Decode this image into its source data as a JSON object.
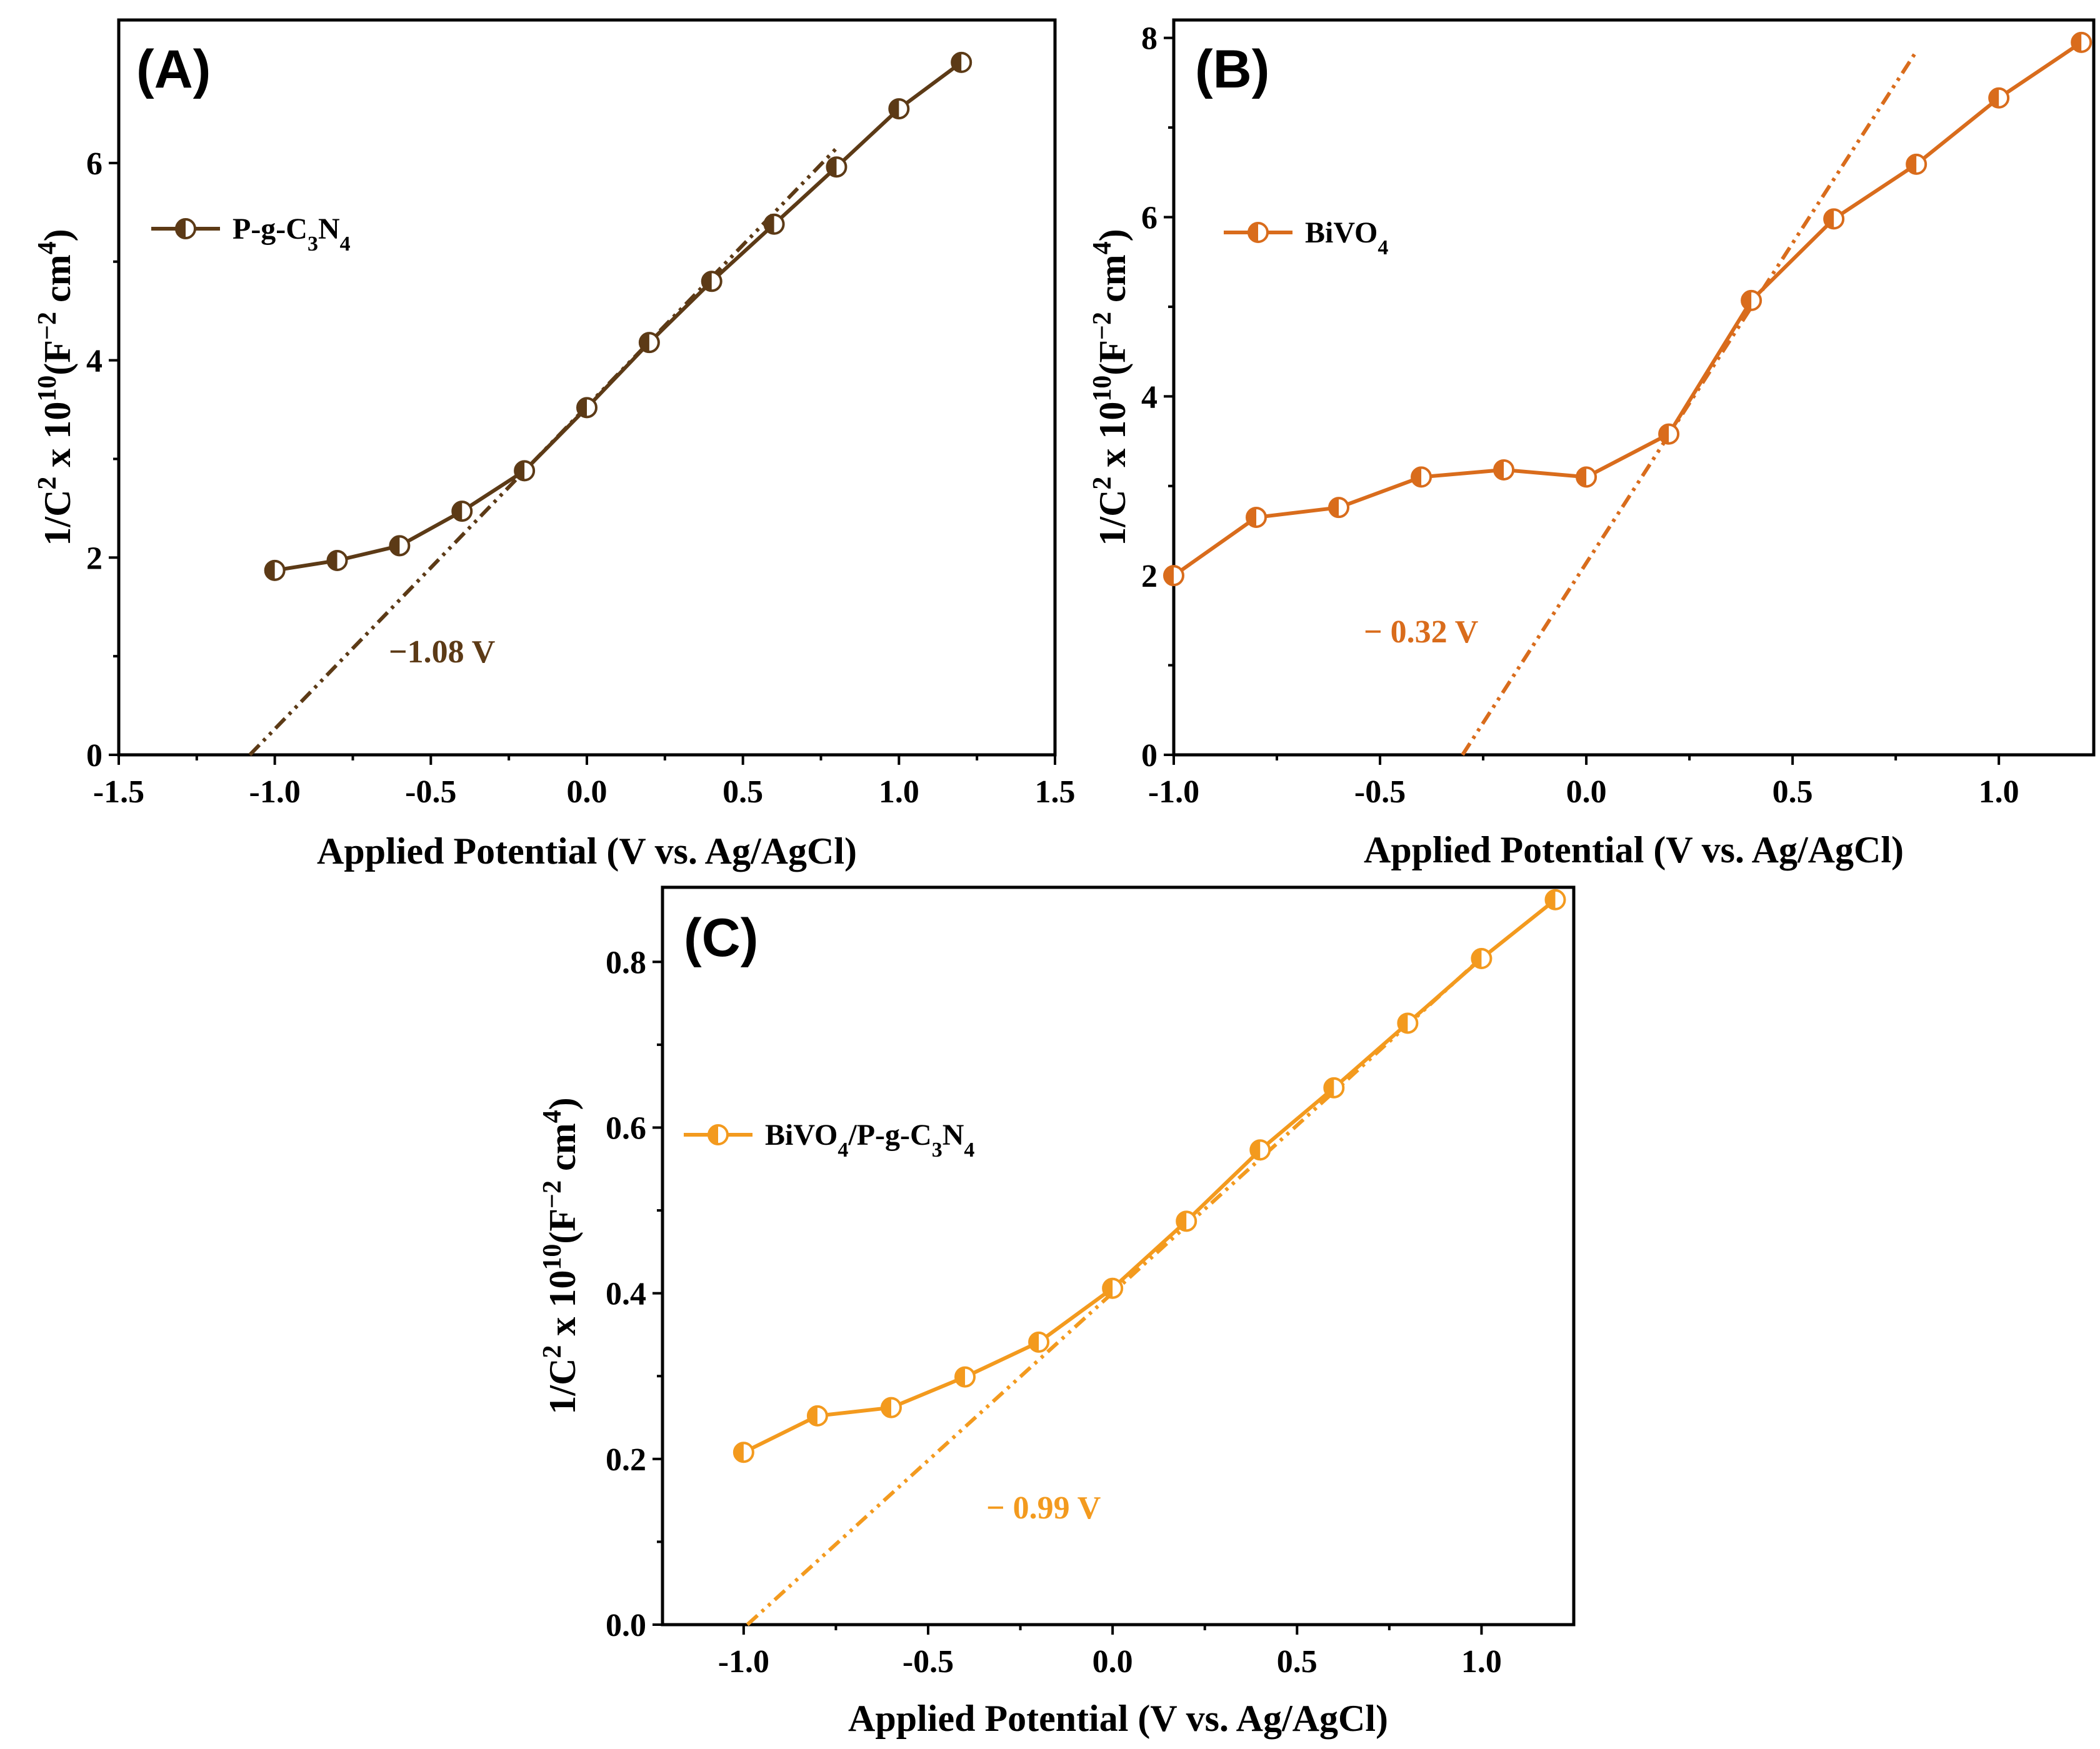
{
  "figure": {
    "panels": [
      "A",
      "B",
      "C"
    ]
  },
  "chart_data": [
    {
      "type": "line",
      "panel_label": "(A)",
      "title": "",
      "xlabel": "Applied Potential (V vs. Ag/AgCl)",
      "ylabel": {
        "base": "1/C",
        "sup1": "2",
        "mid": " x 10",
        "sup2": "10",
        "paren_open": "(F",
        "sup3": "−2",
        "units": " cm",
        "sup4": "4",
        "paren_close": ")"
      },
      "xlim": [
        -1.5,
        1.5
      ],
      "ylim": [
        0,
        7.45
      ],
      "xticks": [
        -1.5,
        -1.0,
        -0.5,
        0.0,
        0.5,
        1.0,
        1.5
      ],
      "xtick_labels": [
        "-1.5",
        "-1.0",
        "-0.5",
        "0.0",
        "0.5",
        "1.0",
        "1.5"
      ],
      "yticks": [
        0,
        2,
        4,
        6
      ],
      "ytick_labels": [
        "0",
        "2",
        "4",
        "6"
      ],
      "legend": {
        "main": "P-g-C",
        "sub1": "3",
        "mid": "N",
        "sub2": "4"
      },
      "legend_position": "top-left",
      "color": "#5c3a16",
      "series": [
        {
          "name": "P-g-C3N4",
          "x": [
            -1.0,
            -0.8,
            -0.6,
            -0.4,
            -0.2,
            0.0,
            0.2,
            0.4,
            0.6,
            0.8,
            1.0,
            1.2
          ],
          "y": [
            1.87,
            1.97,
            2.12,
            2.47,
            2.88,
            3.52,
            4.18,
            4.8,
            5.38,
            5.96,
            6.55,
            7.02
          ]
        }
      ],
      "fit_line": {
        "x": [
          -1.08,
          0.8
        ],
        "y": [
          0,
          6.15
        ]
      },
      "annotation": "−1.08 V"
    },
    {
      "type": "line",
      "panel_label": "(B)",
      "title": "",
      "xlabel": "Applied Potential (V vs. Ag/AgCl)",
      "ylabel": {
        "base": "1/C",
        "sup1": "2",
        "mid": " x 10",
        "sup2": "10",
        "paren_open": "(F",
        "sup3": "−2",
        "units": " cm",
        "sup4": "4",
        "paren_close": ")"
      },
      "xlim": [
        -1.0,
        1.23
      ],
      "ylim": [
        0,
        8.2
      ],
      "xticks": [
        -1.0,
        -0.5,
        0.0,
        0.5,
        1.0
      ],
      "xtick_labels": [
        "-1.0",
        "-0.5",
        "0.0",
        "0.5",
        "1.0"
      ],
      "yticks": [
        0,
        2,
        4,
        6,
        8
      ],
      "ytick_labels": [
        "0",
        "2",
        "4",
        "6",
        "8"
      ],
      "legend": {
        "main": "BiVO",
        "sub1": "4",
        "mid": "",
        "sub2": ""
      },
      "legend_position": "top-left",
      "color": "#d96c1c",
      "series": [
        {
          "name": "BiVO4",
          "x": [
            -1.0,
            -0.8,
            -0.6,
            -0.4,
            -0.2,
            0.0,
            0.2,
            0.4,
            0.6,
            0.8,
            1.0,
            1.2
          ],
          "y": [
            2.0,
            2.65,
            2.76,
            3.1,
            3.18,
            3.1,
            3.58,
            5.07,
            5.98,
            6.59,
            7.33,
            7.95
          ]
        }
      ],
      "fit_line": {
        "x": [
          -0.3,
          0.8
        ],
        "y": [
          0,
          7.85
        ]
      },
      "annotation": "− 0.32 V"
    },
    {
      "type": "line",
      "panel_label": "(C)",
      "title": "",
      "xlabel": "Applied Potential (V vs. Ag/AgCl)",
      "ylabel": {
        "base": "1/C",
        "sup1": "2",
        "mid": " x 10",
        "sup2": "10",
        "paren_open": "(F",
        "sup3": "−2",
        "units": " cm",
        "sup4": "4",
        "paren_close": ")"
      },
      "xlim": [
        -1.22,
        1.25
      ],
      "ylim": [
        0,
        0.89
      ],
      "xticks": [
        -1.0,
        -0.5,
        0.0,
        0.5,
        1.0
      ],
      "xtick_labels": [
        "-1.0",
        "-0.5",
        "0.0",
        "0.5",
        "1.0"
      ],
      "yticks": [
        0.0,
        0.2,
        0.4,
        0.6,
        0.8
      ],
      "ytick_labels": [
        "0.0",
        "0.2",
        "0.4",
        "0.6",
        "0.8"
      ],
      "legend": {
        "main": "BiVO",
        "sub1": "4",
        "mid": "/P-g-C",
        "sub2": "3",
        "tail": "N",
        "sub3": "4"
      },
      "legend_position": "top-left",
      "color": "#f39a1e",
      "series": [
        {
          "name": "BiVO4/P-g-C3N4",
          "x": [
            -1.0,
            -0.8,
            -0.6,
            -0.4,
            -0.2,
            0.0,
            0.2,
            0.4,
            0.6,
            0.8,
            1.0,
            1.2
          ],
          "y": [
            0.208,
            0.252,
            0.262,
            0.299,
            0.341,
            0.406,
            0.487,
            0.573,
            0.648,
            0.726,
            0.804,
            0.875
          ]
        }
      ],
      "fit_line": {
        "x": [
          -0.99,
          1.0
        ],
        "y": [
          0,
          0.805
        ]
      },
      "annotation": "− 0.99 V"
    }
  ]
}
